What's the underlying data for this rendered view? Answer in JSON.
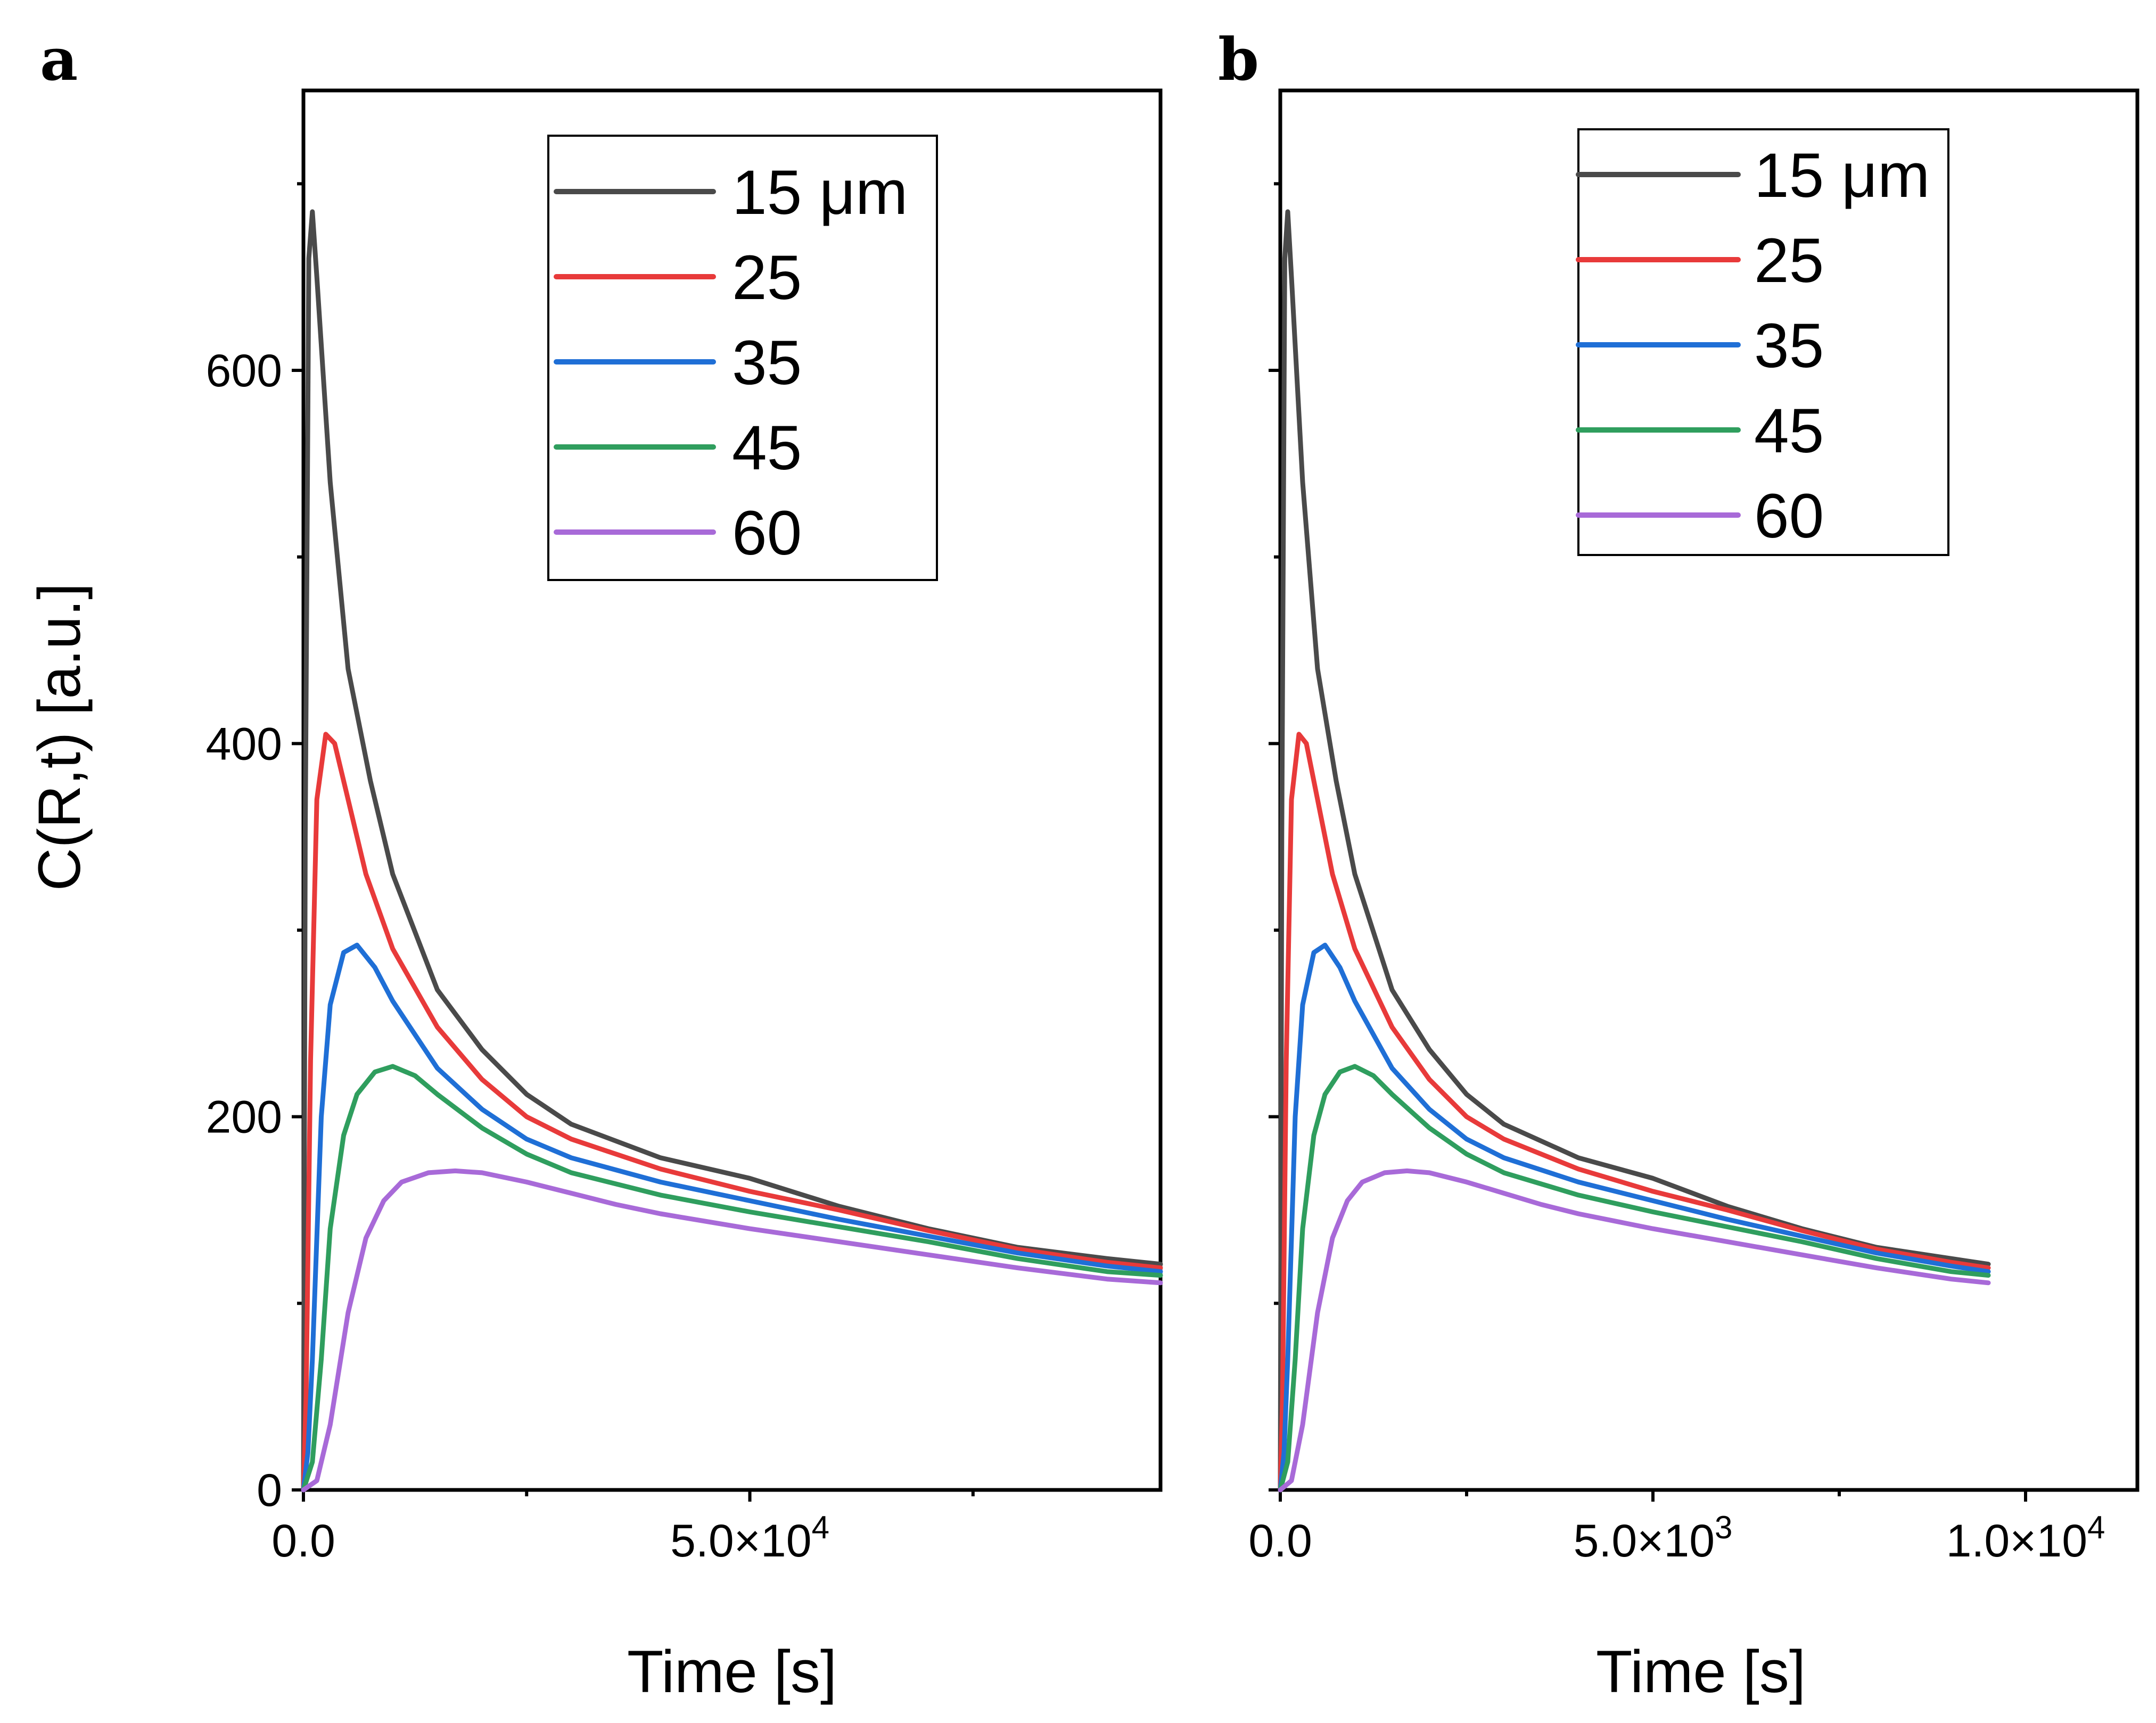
{
  "chart_data": [
    {
      "panel": "a",
      "type": "line",
      "xlabel": "Time [s]",
      "ylabel": "C(R,t) [a.u.]",
      "xlim": [
        0,
        96000
      ],
      "ylim": [
        0,
        750
      ],
      "x_ticks": [
        {
          "value": 0,
          "label": "0.0",
          "base": "0.0",
          "exp": ""
        },
        {
          "value": 50000,
          "label": "5.0×10^4",
          "base": "5.0×10",
          "exp": "4"
        }
      ],
      "x_minor_ticks": [
        25000,
        75000
      ],
      "y_ticks": [
        {
          "value": 0,
          "label": "0"
        },
        {
          "value": 200,
          "label": "200"
        },
        {
          "value": 400,
          "label": "400"
        },
        {
          "value": 600,
          "label": "600"
        }
      ],
      "y_minor_ticks": [
        100,
        300,
        500,
        700
      ],
      "legend_position": "top-right",
      "series": [
        {
          "name": "15 μm",
          "color": "#4a4a4a",
          "x": [
            0,
            200,
            600,
            1000,
            1500,
            3000,
            5000,
            7500,
            10000,
            15000,
            20000,
            25000,
            30000,
            40000,
            50000,
            60000,
            70000,
            80000,
            90000,
            96000
          ],
          "y": [
            0,
            350,
            660,
            685,
            650,
            540,
            440,
            380,
            330,
            268,
            236,
            212,
            196,
            178,
            167,
            152,
            140,
            130,
            124,
            121
          ]
        },
        {
          "name": "25",
          "color": "#e83a3a",
          "x": [
            0,
            300,
            800,
            1500,
            2500,
            3500,
            5000,
            7000,
            10000,
            15000,
            20000,
            25000,
            30000,
            40000,
            50000,
            60000,
            70000,
            80000,
            90000,
            96000
          ],
          "y": [
            0,
            50,
            230,
            370,
            405,
            400,
            370,
            330,
            290,
            248,
            220,
            200,
            188,
            172,
            160,
            150,
            139,
            129,
            122,
            119
          ]
        },
        {
          "name": "35",
          "color": "#1f6fd6",
          "x": [
            0,
            500,
            1000,
            2000,
            3000,
            4500,
            6000,
            8000,
            10000,
            15000,
            20000,
            25000,
            30000,
            40000,
            50000,
            60000,
            70000,
            80000,
            90000,
            96000
          ],
          "y": [
            0,
            20,
            70,
            200,
            260,
            288,
            292,
            280,
            262,
            226,
            204,
            188,
            178,
            165,
            155,
            145,
            136,
            127,
            120,
            117
          ]
        },
        {
          "name": "45",
          "color": "#2f9e5e",
          "x": [
            0,
            1000,
            2000,
            3000,
            4500,
            6000,
            8000,
            10000,
            12500,
            15000,
            20000,
            25000,
            30000,
            40000,
            50000,
            60000,
            70000,
            80000,
            90000,
            96000
          ],
          "y": [
            0,
            15,
            70,
            140,
            190,
            212,
            224,
            227,
            222,
            212,
            194,
            180,
            170,
            158,
            149,
            141,
            133,
            124,
            117,
            115
          ]
        },
        {
          "name": "60",
          "color": "#a86ad8",
          "x": [
            0,
            1500,
            3000,
            5000,
            7000,
            9000,
            11000,
            14000,
            17000,
            20000,
            25000,
            30000,
            35000,
            40000,
            50000,
            60000,
            70000,
            80000,
            90000,
            96000
          ],
          "y": [
            0,
            5,
            35,
            95,
            135,
            155,
            165,
            170,
            171,
            170,
            165,
            159,
            153,
            148,
            140,
            133,
            126,
            119,
            113,
            111
          ]
        }
      ]
    },
    {
      "panel": "b",
      "type": "line",
      "xlabel": "Time [s]",
      "ylabel": "",
      "xlim": [
        0,
        11500
      ],
      "ylim": [
        0,
        750
      ],
      "x_ticks": [
        {
          "value": 0,
          "label": "0.0",
          "base": "0.0",
          "exp": ""
        },
        {
          "value": 5000,
          "label": "5.0×10^3",
          "base": "5.0×10",
          "exp": "3"
        },
        {
          "value": 10000,
          "label": "1.0×10^4",
          "base": "1.0×10",
          "exp": "4"
        }
      ],
      "x_minor_ticks": [
        2500,
        7500
      ],
      "y_ticks": [
        {
          "value": 0,
          "label": ""
        },
        {
          "value": 200,
          "label": ""
        },
        {
          "value": 400,
          "label": ""
        },
        {
          "value": 600,
          "label": ""
        }
      ],
      "y_minor_ticks": [
        100,
        300,
        500,
        700
      ],
      "legend_position": "top-right",
      "series": [
        {
          "name": "15 μm",
          "color": "#4a4a4a",
          "x": [
            0,
            20,
            60,
            100,
            150,
            300,
            500,
            750,
            1000,
            1500,
            2000,
            2500,
            3000,
            4000,
            5000,
            6000,
            7000,
            8000,
            9000,
            9500
          ],
          "y": [
            0,
            350,
            660,
            685,
            650,
            540,
            440,
            380,
            330,
            268,
            236,
            212,
            196,
            178,
            167,
            152,
            140,
            130,
            124,
            121
          ]
        },
        {
          "name": "25",
          "color": "#e83a3a",
          "x": [
            0,
            30,
            80,
            150,
            250,
            350,
            500,
            700,
            1000,
            1500,
            2000,
            2500,
            3000,
            4000,
            5000,
            6000,
            7000,
            8000,
            9000,
            9500
          ],
          "y": [
            0,
            50,
            230,
            370,
            405,
            400,
            370,
            330,
            290,
            248,
            220,
            200,
            188,
            172,
            160,
            150,
            139,
            129,
            122,
            119
          ]
        },
        {
          "name": "35",
          "color": "#1f6fd6",
          "x": [
            0,
            50,
            100,
            200,
            300,
            450,
            600,
            800,
            1000,
            1500,
            2000,
            2500,
            3000,
            4000,
            5000,
            6000,
            7000,
            8000,
            9000,
            9500
          ],
          "y": [
            0,
            20,
            70,
            200,
            260,
            288,
            292,
            280,
            262,
            226,
            204,
            188,
            178,
            165,
            155,
            145,
            136,
            127,
            120,
            117
          ]
        },
        {
          "name": "45",
          "color": "#2f9e5e",
          "x": [
            0,
            100,
            200,
            300,
            450,
            600,
            800,
            1000,
            1250,
            1500,
            2000,
            2500,
            3000,
            4000,
            5000,
            6000,
            7000,
            8000,
            9000,
            9500
          ],
          "y": [
            0,
            15,
            70,
            140,
            190,
            212,
            224,
            227,
            222,
            212,
            194,
            180,
            170,
            158,
            149,
            141,
            133,
            124,
            117,
            115
          ]
        },
        {
          "name": "60",
          "color": "#a86ad8",
          "x": [
            0,
            150,
            300,
            500,
            700,
            900,
            1100,
            1400,
            1700,
            2000,
            2500,
            3000,
            3500,
            4000,
            5000,
            6000,
            7000,
            8000,
            9000,
            9500
          ],
          "y": [
            0,
            5,
            35,
            95,
            135,
            155,
            165,
            170,
            171,
            170,
            165,
            159,
            153,
            148,
            140,
            133,
            126,
            119,
            113,
            111
          ]
        }
      ]
    }
  ]
}
